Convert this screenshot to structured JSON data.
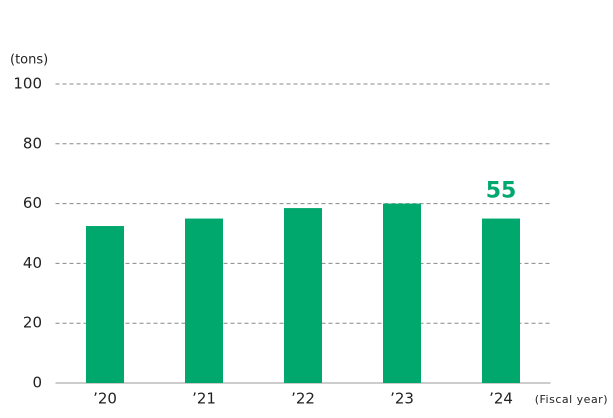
{
  "chart_data": {
    "type": "bar",
    "y_label": "(tons)",
    "x_label": "(Fiscal year)",
    "categories": [
      "’20",
      "’21",
      "’22",
      "’23",
      "’24"
    ],
    "values": [
      52.5,
      55,
      58.5,
      60,
      55
    ],
    "value_labels": [
      null,
      null,
      null,
      null,
      "55"
    ],
    "color": "#00a86e",
    "ylim": [
      0,
      100
    ],
    "yticks": [
      0,
      20,
      40,
      60,
      80,
      100
    ],
    "grid": true
  }
}
